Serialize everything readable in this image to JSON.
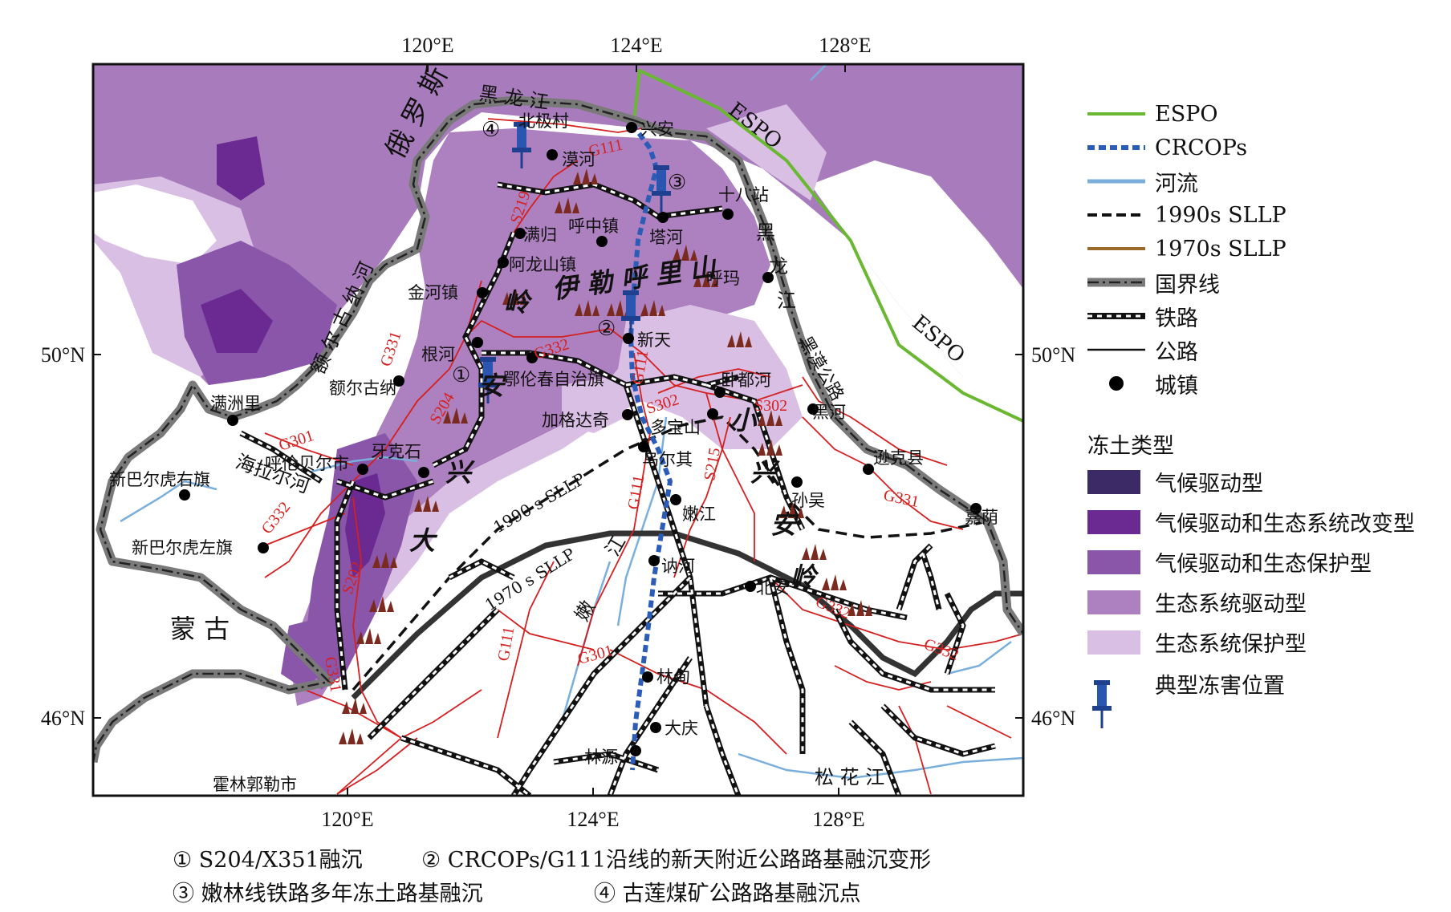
{
  "map": {
    "top_ticks": [
      "120°E",
      "124°E",
      "128°E"
    ],
    "bottom_ticks": [
      "120°E",
      "124°E",
      "128°E"
    ],
    "left_ticks": [
      "50°N",
      "46°N"
    ],
    "right_ticks": [
      "50°N",
      "46°N"
    ],
    "country_labels": {
      "russia": "俄 罗 斯",
      "mongolia": "蒙 古"
    },
    "mountain_labels": {
      "greater_khingan": [
        "大",
        "兴",
        "安",
        "岭"
      ],
      "ilkhuri": "伊 勒 呼 里 山",
      "lesser_khingan": [
        "小",
        "兴",
        "安",
        "岭"
      ]
    },
    "pipeline_labels": [
      "ESPO",
      "ESPO"
    ],
    "river_labels": {
      "heilongjiang_top": "黑 龙 江",
      "heilongjiang_right": [
        "黑",
        "龙",
        "江"
      ],
      "erguna": "额 尔 古 纳 河",
      "hailar": "海拉尔河",
      "nen": [
        "嫩",
        "江"
      ],
      "songhua": "松  花  江"
    },
    "road_labels": [
      "G111",
      "S219",
      "G331",
      "G332",
      "S204",
      "G111",
      "S302",
      "S302",
      "G301",
      "G332",
      "S202",
      "G331",
      "S215",
      "G111",
      "G111",
      "G301",
      "G332",
      "G332",
      "G331",
      "黑漠公路"
    ],
    "sllp_labels": [
      "1990 s SLLP",
      "1970 s SLLP"
    ],
    "towns": [
      "兴安",
      "北极村",
      "漠河",
      "十八站",
      "满归",
      "呼中镇",
      "塔河",
      "阿龙山镇",
      "呼玛",
      "金河镇",
      "新天",
      "根河",
      "鄂伦春自治旗",
      "额尔古纳",
      "卧都河",
      "满洲里",
      "加格达奇",
      "黑河",
      "多宝山",
      "呼伦贝尔市",
      "牙克石",
      "乌尔其",
      "逊克县",
      "新巴尔虎右旗",
      "孙吴",
      "嫩江",
      "嘉荫",
      "新巴尔虎左旗",
      "讷河",
      "北安",
      "林甸",
      "大庆",
      "林源",
      "霍林郭勒市"
    ],
    "site_numbers": [
      "④",
      "③",
      "②",
      "①"
    ]
  },
  "legend": {
    "items": [
      {
        "label": "ESPO",
        "color": "#6ab832"
      },
      {
        "label": "CRCOPs",
        "color": "#2a5cb8"
      },
      {
        "label": "河流",
        "color": "#7aaedb"
      },
      {
        "label": "1990s SLLP",
        "color": "#111111"
      },
      {
        "label": "1970s SLLP",
        "color": "#9a6a2a"
      },
      {
        "label": "国界线",
        "color": "#7a7a7a"
      },
      {
        "label": "铁路",
        "color": "#111111"
      },
      {
        "label": "公路",
        "color": "#111111"
      },
      {
        "label": "城镇",
        "color": "#000000"
      }
    ],
    "permafrost_title": "冻土类型",
    "permafrost_types": [
      {
        "label": "气候驱动型",
        "color": "#3c2a66"
      },
      {
        "label": "气候驱动和生态系统改变型",
        "color": "#6a2a92"
      },
      {
        "label": "气候驱动和生态保护型",
        "color": "#8a56aa"
      },
      {
        "label": "生态系统驱动型",
        "color": "#ad80bf"
      },
      {
        "label": "生态系统保护型",
        "color": "#d9bfe3"
      }
    ],
    "hazard_label": "典型冻害位置"
  },
  "captions": [
    "① S204/X351融沉",
    "② CRCOPs/G111沿线的新天附近公路路基融沉变形",
    "③ 嫩林线铁路多年冻土路基融沉",
    "④ 古莲煤矿公路路基融沉点"
  ]
}
